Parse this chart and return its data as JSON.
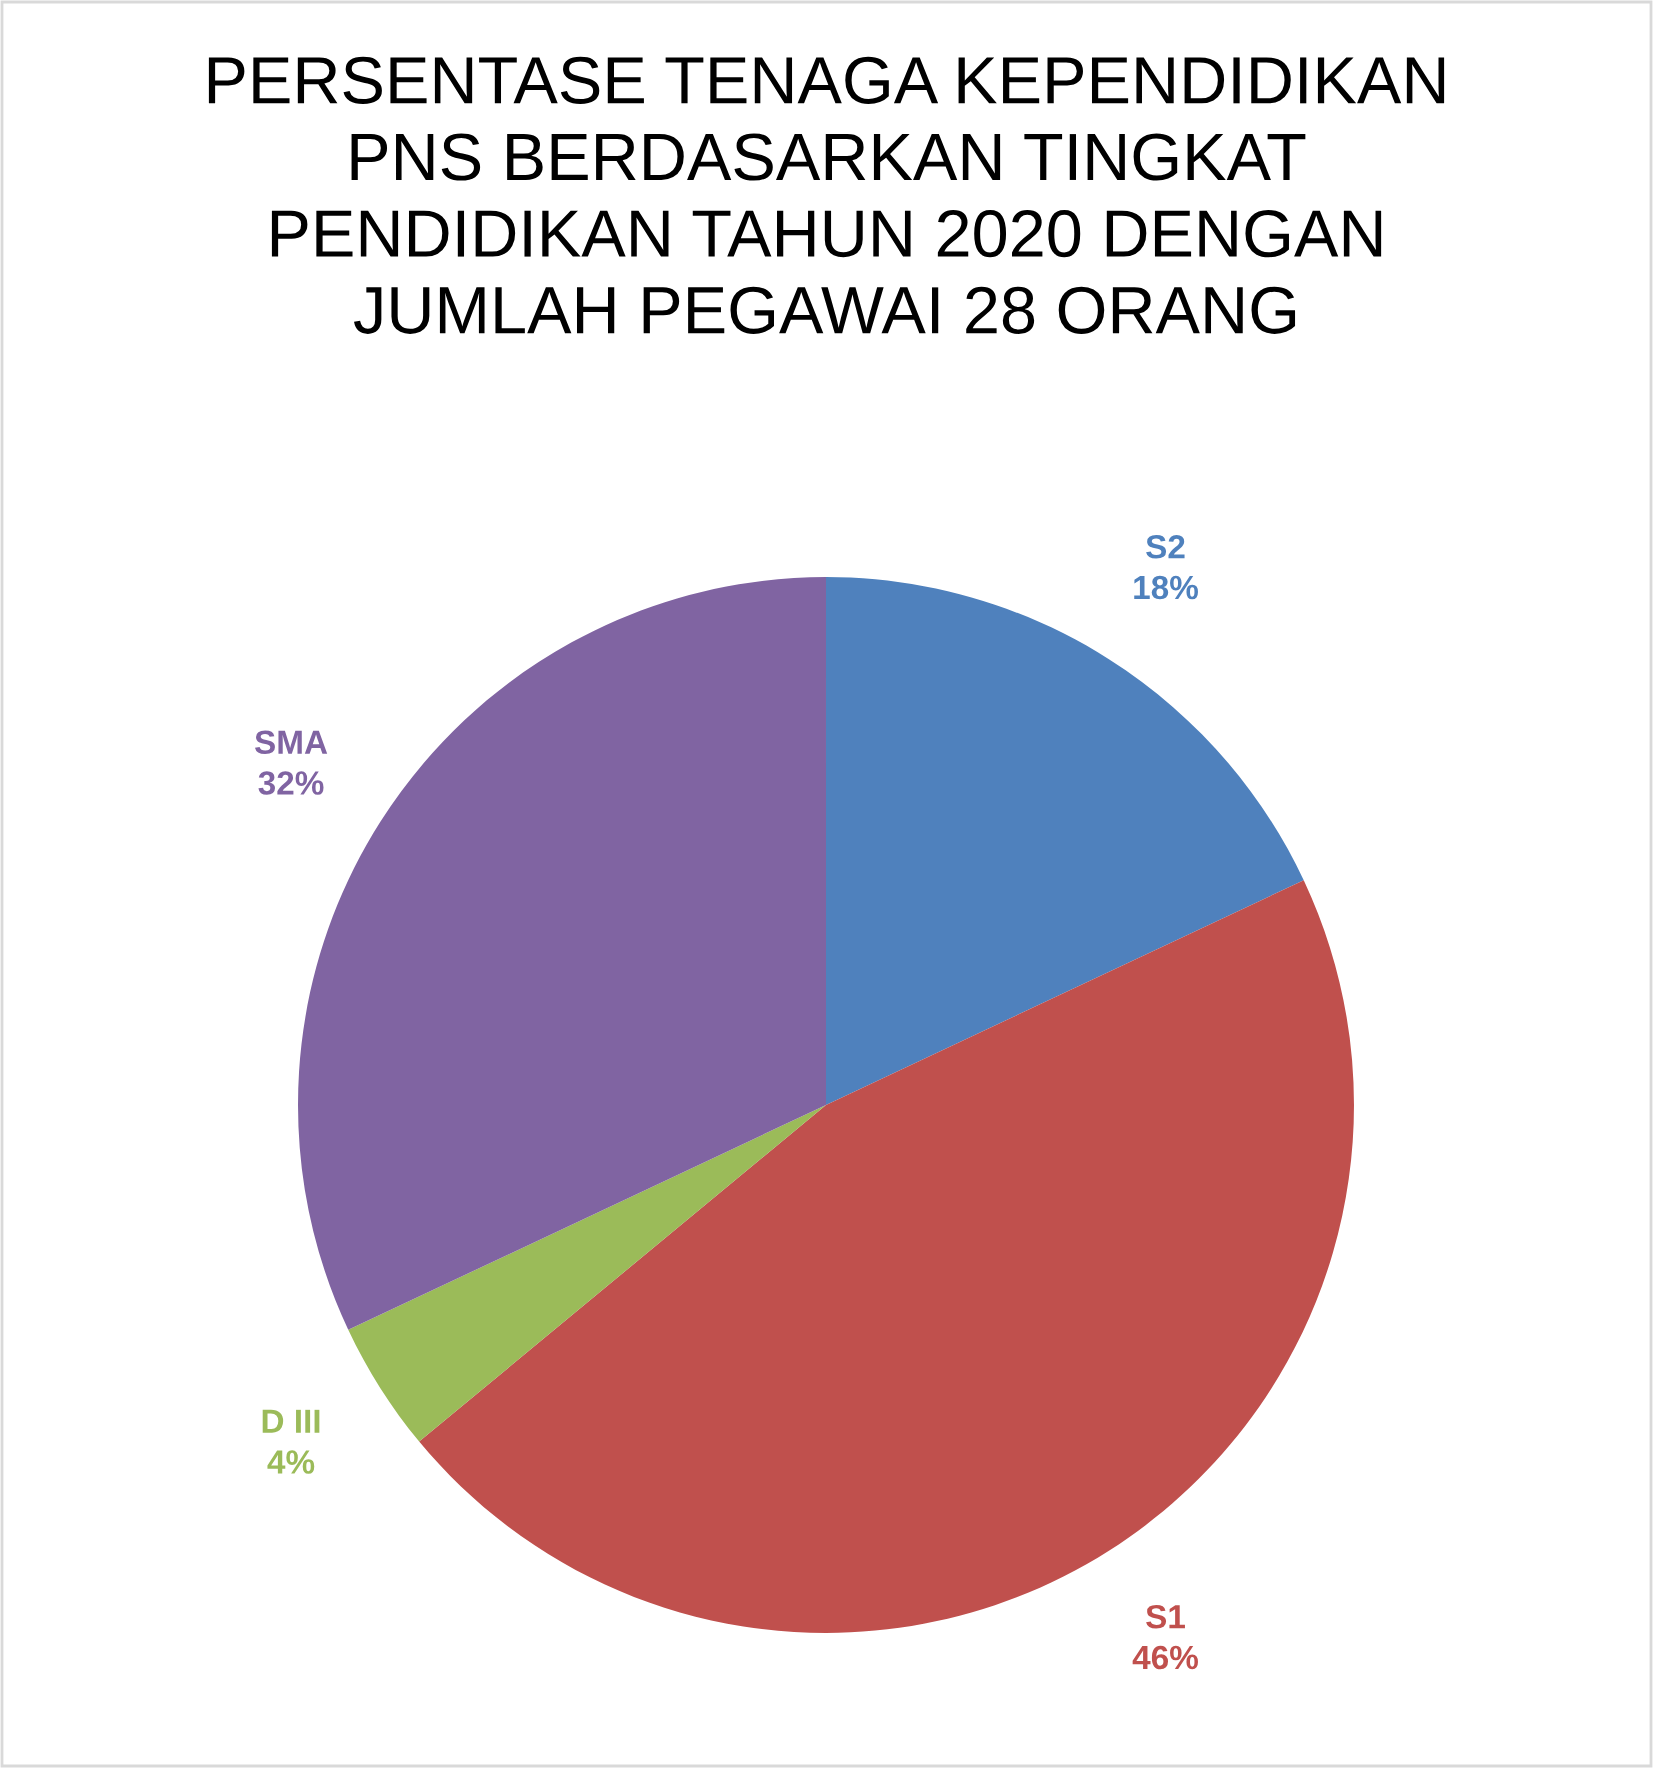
{
  "chart_data": {
    "type": "pie",
    "title": "PERSENTASE TENAGA KEPENDIDIKAN\nPNS BERDASARKAN TINGKAT\nPENDIDIKAN TAHUN 2020 DENGAN\nJUMLAH PEGAWAI 28 ORANG",
    "categories": [
      "S2",
      "S1",
      "D III",
      "SMA"
    ],
    "values": [
      18,
      46,
      4,
      32
    ],
    "colors": [
      "#4f81bd",
      "#c0504d",
      "#9bbb59",
      "#8064a2"
    ],
    "value_labels": [
      "18%",
      "46%",
      "4%",
      "32%"
    ],
    "legend": false
  }
}
